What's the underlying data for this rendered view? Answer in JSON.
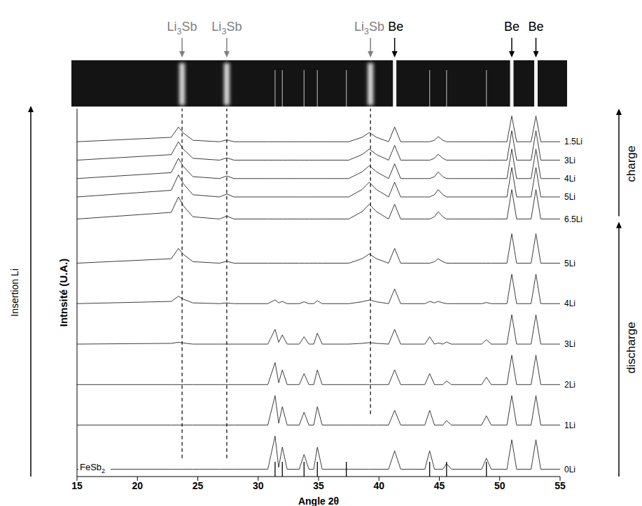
{
  "chart_data": {
    "type": "line",
    "x_label": "Angle 2θ",
    "y_label": "Intnsité (U.A.)",
    "side_label": "Insertion Li",
    "phase_labels": [
      "discharge",
      "charge"
    ],
    "xlim": [
      15,
      55
    ],
    "xticks": [
      15,
      20,
      25,
      30,
      35,
      40,
      45,
      50,
      55
    ],
    "ylim": [
      0,
      100
    ],
    "tick_labels": "x",
    "grid": false,
    "color": "#262626",
    "x": [
      15,
      22.8,
      23.4,
      23.8,
      24.6,
      26.8,
      27.4,
      28,
      30.8,
      31.4,
      31.7,
      32,
      32.4,
      33.4,
      33.8,
      34.2,
      34.6,
      34.9,
      35.3,
      37.5,
      38.6,
      39.2,
      39.8,
      40.8,
      41.3,
      41.8,
      43.8,
      44.2,
      44.6,
      44.9,
      45.3,
      45.6,
      46,
      48.5,
      48.9,
      49.3,
      50.6,
      51,
      51.4,
      52.6,
      53,
      53.4,
      55
    ],
    "series": [
      {
        "name": "0Li",
        "values": [
          2,
          2,
          2,
          2,
          2,
          2,
          2,
          2,
          2,
          11,
          2.5,
          8,
          2,
          2,
          6,
          2,
          2,
          8,
          2,
          2,
          2,
          2,
          2,
          2,
          7,
          2,
          2,
          7,
          2,
          2,
          2,
          3.5,
          2,
          2,
          5,
          2,
          2,
          10,
          2,
          2,
          10,
          2,
          2
        ]
      },
      {
        "name": "1Li",
        "values": [
          14,
          14,
          14,
          14,
          14,
          14,
          14,
          14,
          14,
          22,
          14.5,
          19,
          14,
          14,
          17.5,
          14,
          14,
          19,
          14,
          14,
          14,
          14,
          14,
          14,
          18,
          14,
          14,
          18,
          14,
          14,
          14,
          15.2,
          14,
          14,
          16.5,
          14,
          14,
          22,
          14,
          14,
          22,
          14,
          14
        ]
      },
      {
        "name": "2Li",
        "values": [
          25,
          25,
          25,
          25,
          25,
          25,
          25,
          25,
          25,
          31,
          25.5,
          29,
          25,
          25,
          28,
          25,
          25,
          29,
          25,
          25,
          25,
          25,
          25,
          25,
          29,
          25,
          25,
          28,
          25,
          25,
          25,
          26,
          25,
          25,
          27,
          25,
          25,
          33,
          25,
          25,
          33,
          25,
          25
        ]
      },
      {
        "name": "3Li",
        "values": [
          36,
          36.2,
          36.5,
          36.3,
          36,
          36,
          36,
          36,
          36,
          40,
          36.5,
          38.5,
          36,
          36,
          38,
          36,
          36,
          39,
          36,
          36,
          36.2,
          36.4,
          36.2,
          36,
          40,
          36,
          36,
          38,
          36,
          36.3,
          36,
          36.6,
          36,
          36,
          37.2,
          36,
          36,
          44,
          36,
          36,
          44,
          36,
          36
        ]
      },
      {
        "name": "4Li",
        "values": [
          47,
          47.6,
          49,
          48.2,
          47.2,
          47,
          47.2,
          47,
          47,
          48,
          47.2,
          47.6,
          47,
          47,
          47.5,
          47,
          47,
          47.8,
          47,
          47,
          47.5,
          48,
          47.5,
          47,
          51,
          47,
          47,
          47.6,
          47.2,
          47.6,
          47.2,
          47,
          47,
          47,
          47.3,
          47,
          47,
          55,
          47,
          47,
          55,
          47,
          47
        ]
      },
      {
        "name": "5Li",
        "values": [
          58,
          59.2,
          62,
          60.4,
          58.4,
          58,
          58.5,
          58,
          58,
          58,
          58,
          58,
          58,
          58,
          58,
          58,
          58,
          58,
          58,
          58,
          59.2,
          60.5,
          59.2,
          58,
          62,
          58,
          58,
          58,
          58.4,
          59.2,
          58.4,
          58,
          58,
          58,
          58,
          58,
          58,
          66,
          58,
          58,
          66,
          58,
          58
        ]
      },
      {
        "name": "6.5Li",
        "values": [
          70,
          71.8,
          76,
          73.6,
          70.6,
          70,
          70.8,
          70,
          70,
          70,
          70,
          70,
          70,
          70,
          70,
          70,
          70,
          70,
          70,
          70,
          72,
          74,
          72,
          70,
          74,
          70,
          70,
          70,
          70.6,
          72,
          70.6,
          70,
          70,
          70,
          70,
          70,
          70,
          78,
          70,
          70,
          78,
          70,
          70
        ]
      },
      {
        "name": "5Li",
        "values": [
          76,
          77.8,
          82,
          79.6,
          76.6,
          76,
          76.8,
          76,
          76,
          76,
          76,
          76,
          76,
          76,
          76,
          76,
          76,
          76,
          76,
          76,
          78,
          80,
          78,
          76,
          80,
          76,
          76,
          76,
          76.6,
          78,
          76.6,
          76,
          76,
          76,
          76,
          76,
          76,
          84,
          76,
          76,
          84,
          76,
          76
        ]
      },
      {
        "name": "4Li",
        "values": [
          81,
          82.6,
          86.5,
          84.3,
          81.5,
          81,
          81.7,
          81,
          81,
          81,
          81,
          81,
          81,
          81,
          81,
          81,
          81,
          81,
          81,
          81,
          82.8,
          84.5,
          82.8,
          81,
          85,
          81,
          81,
          81,
          81.5,
          82.8,
          81.5,
          81,
          81,
          81,
          81,
          81,
          81,
          89,
          81,
          81,
          89,
          81,
          81
        ]
      },
      {
        "name": "3Li",
        "values": [
          86,
          87.5,
          91,
          89,
          86.5,
          86,
          86.6,
          86,
          86,
          86,
          86,
          86,
          86,
          86,
          86,
          86,
          86,
          86,
          86,
          86,
          87.5,
          89,
          87.5,
          86,
          90,
          86,
          86,
          86,
          86.5,
          87.6,
          86.5,
          86,
          86,
          86,
          86,
          86,
          86,
          94,
          86,
          86,
          94,
          86,
          86
        ]
      },
      {
        "name": "1.5Li",
        "values": [
          91,
          92.2,
          95,
          93.4,
          91.4,
          91,
          91.5,
          91,
          91,
          91,
          91,
          91,
          91,
          91,
          91,
          91,
          91,
          91,
          91,
          91,
          92.2,
          93.5,
          92.2,
          91,
          95,
          91,
          91,
          91,
          91.4,
          92.4,
          91.4,
          91,
          91,
          91,
          91,
          91,
          91,
          98,
          91,
          91,
          98,
          91,
          91
        ]
      }
    ],
    "annotations": [
      {
        "text": "Li3Sb",
        "x": 23.7,
        "color": "#808080",
        "line": [
          5,
          100
        ]
      },
      {
        "text": "Li3Sb",
        "x": 27.4,
        "color": "#808080",
        "line": [
          5,
          100
        ]
      },
      {
        "text": "Li3Sb",
        "x": 39.3,
        "color": "#808080",
        "line": [
          17,
          100
        ]
      },
      {
        "text": "Be",
        "x": 41.3,
        "color": "#000000"
      },
      {
        "text": "Be",
        "x": 51.0,
        "color": "#000000"
      },
      {
        "text": "Be",
        "x": 53.0,
        "color": "#000000"
      }
    ],
    "reference_pattern": {
      "name": "FeSb2",
      "positions": [
        31.4,
        32.0,
        33.8,
        34.9,
        37.3,
        44.2,
        45.6,
        48.9
      ],
      "span": [
        0,
        4
      ]
    }
  }
}
